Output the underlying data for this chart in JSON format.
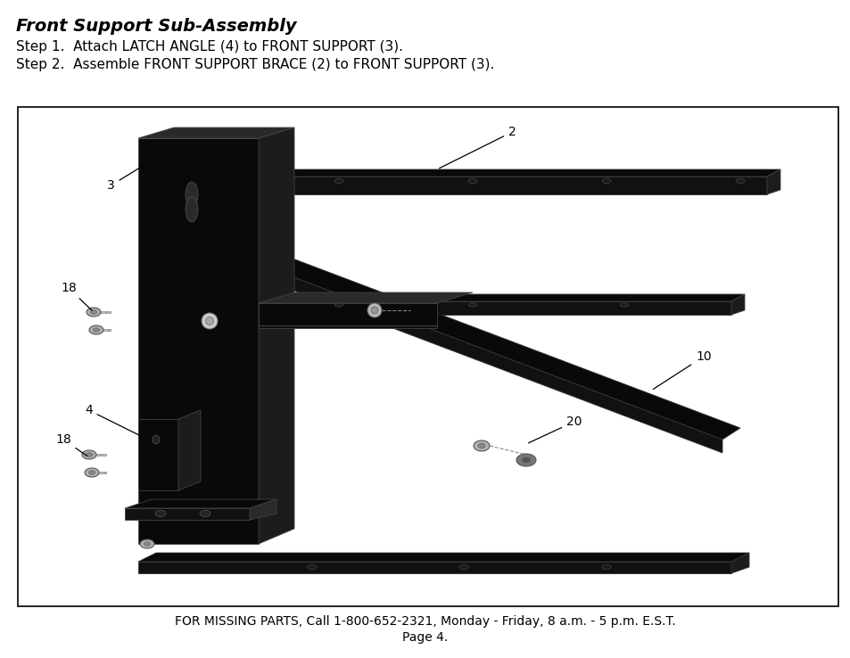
{
  "title": "Front Support Sub-Assembly",
  "step1": "Step 1.  Attach LATCH ANGLE (4) to FRONT SUPPORT (3).",
  "step2": "Step 2.  Assemble FRONT SUPPORT BRACE (2) to FRONT SUPPORT (3).",
  "footer_line1": "FOR MISSING PARTS, Call 1-800-652-2321, Monday - Friday, 8 a.m. - 5 p.m. E.S.T.",
  "footer_line2": "Page 4.",
  "bg_color": "#ffffff",
  "box_border": "#000000",
  "text_color": "#000000",
  "title_fontsize": 14,
  "step_fontsize": 11,
  "footer_fontsize": 10
}
